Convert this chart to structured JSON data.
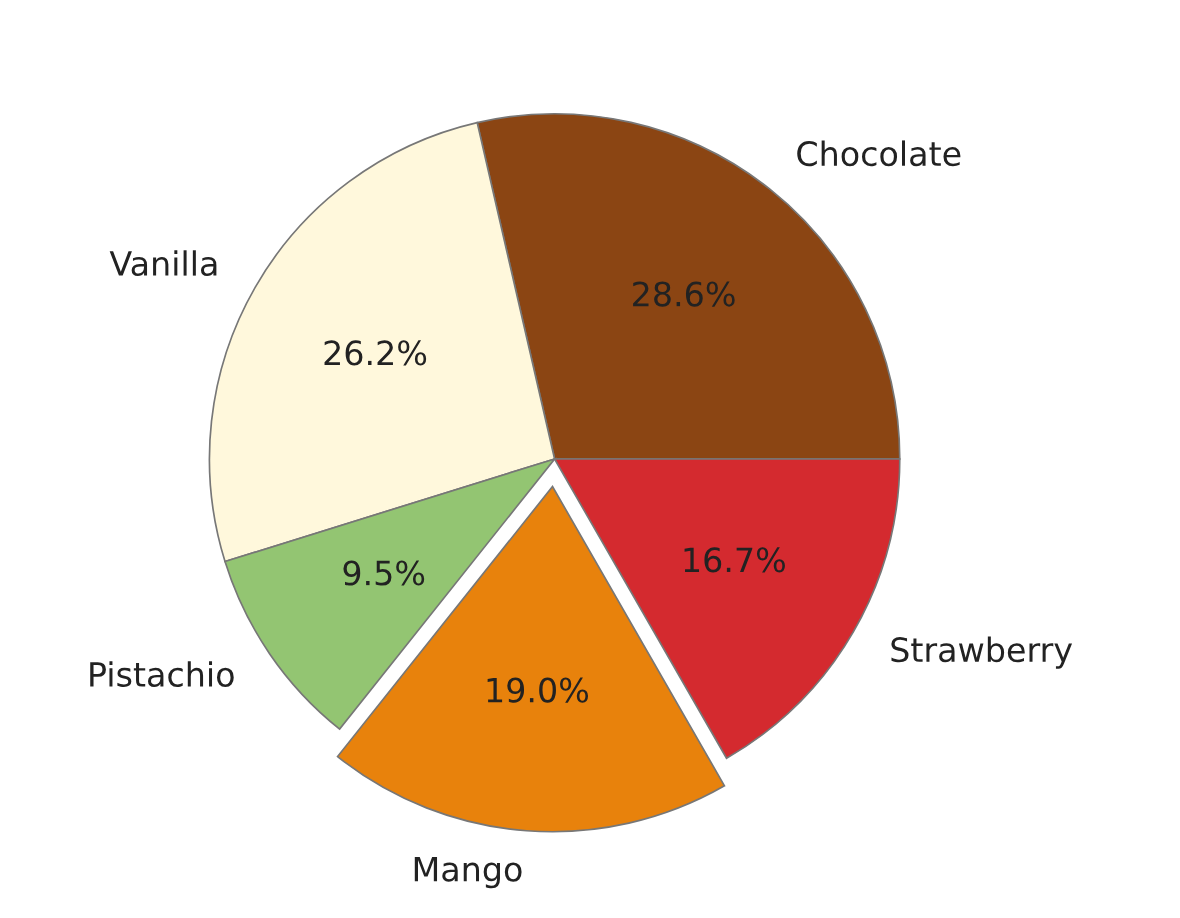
{
  "chart_data": {
    "type": "pie",
    "categories": [
      "Chocolate",
      "Vanilla",
      "Pistachio",
      "Mango",
      "Strawberry"
    ],
    "values": [
      28.6,
      26.2,
      9.5,
      19.0,
      16.7
    ],
    "colors": [
      "#8b4513",
      "#fff8dc",
      "#93c572",
      "#e8820c",
      "#d42a2f"
    ],
    "value_labels": [
      "28.6%",
      "26.2%",
      "9.5%",
      "19.0%",
      "16.7%"
    ],
    "legend": false
  }
}
